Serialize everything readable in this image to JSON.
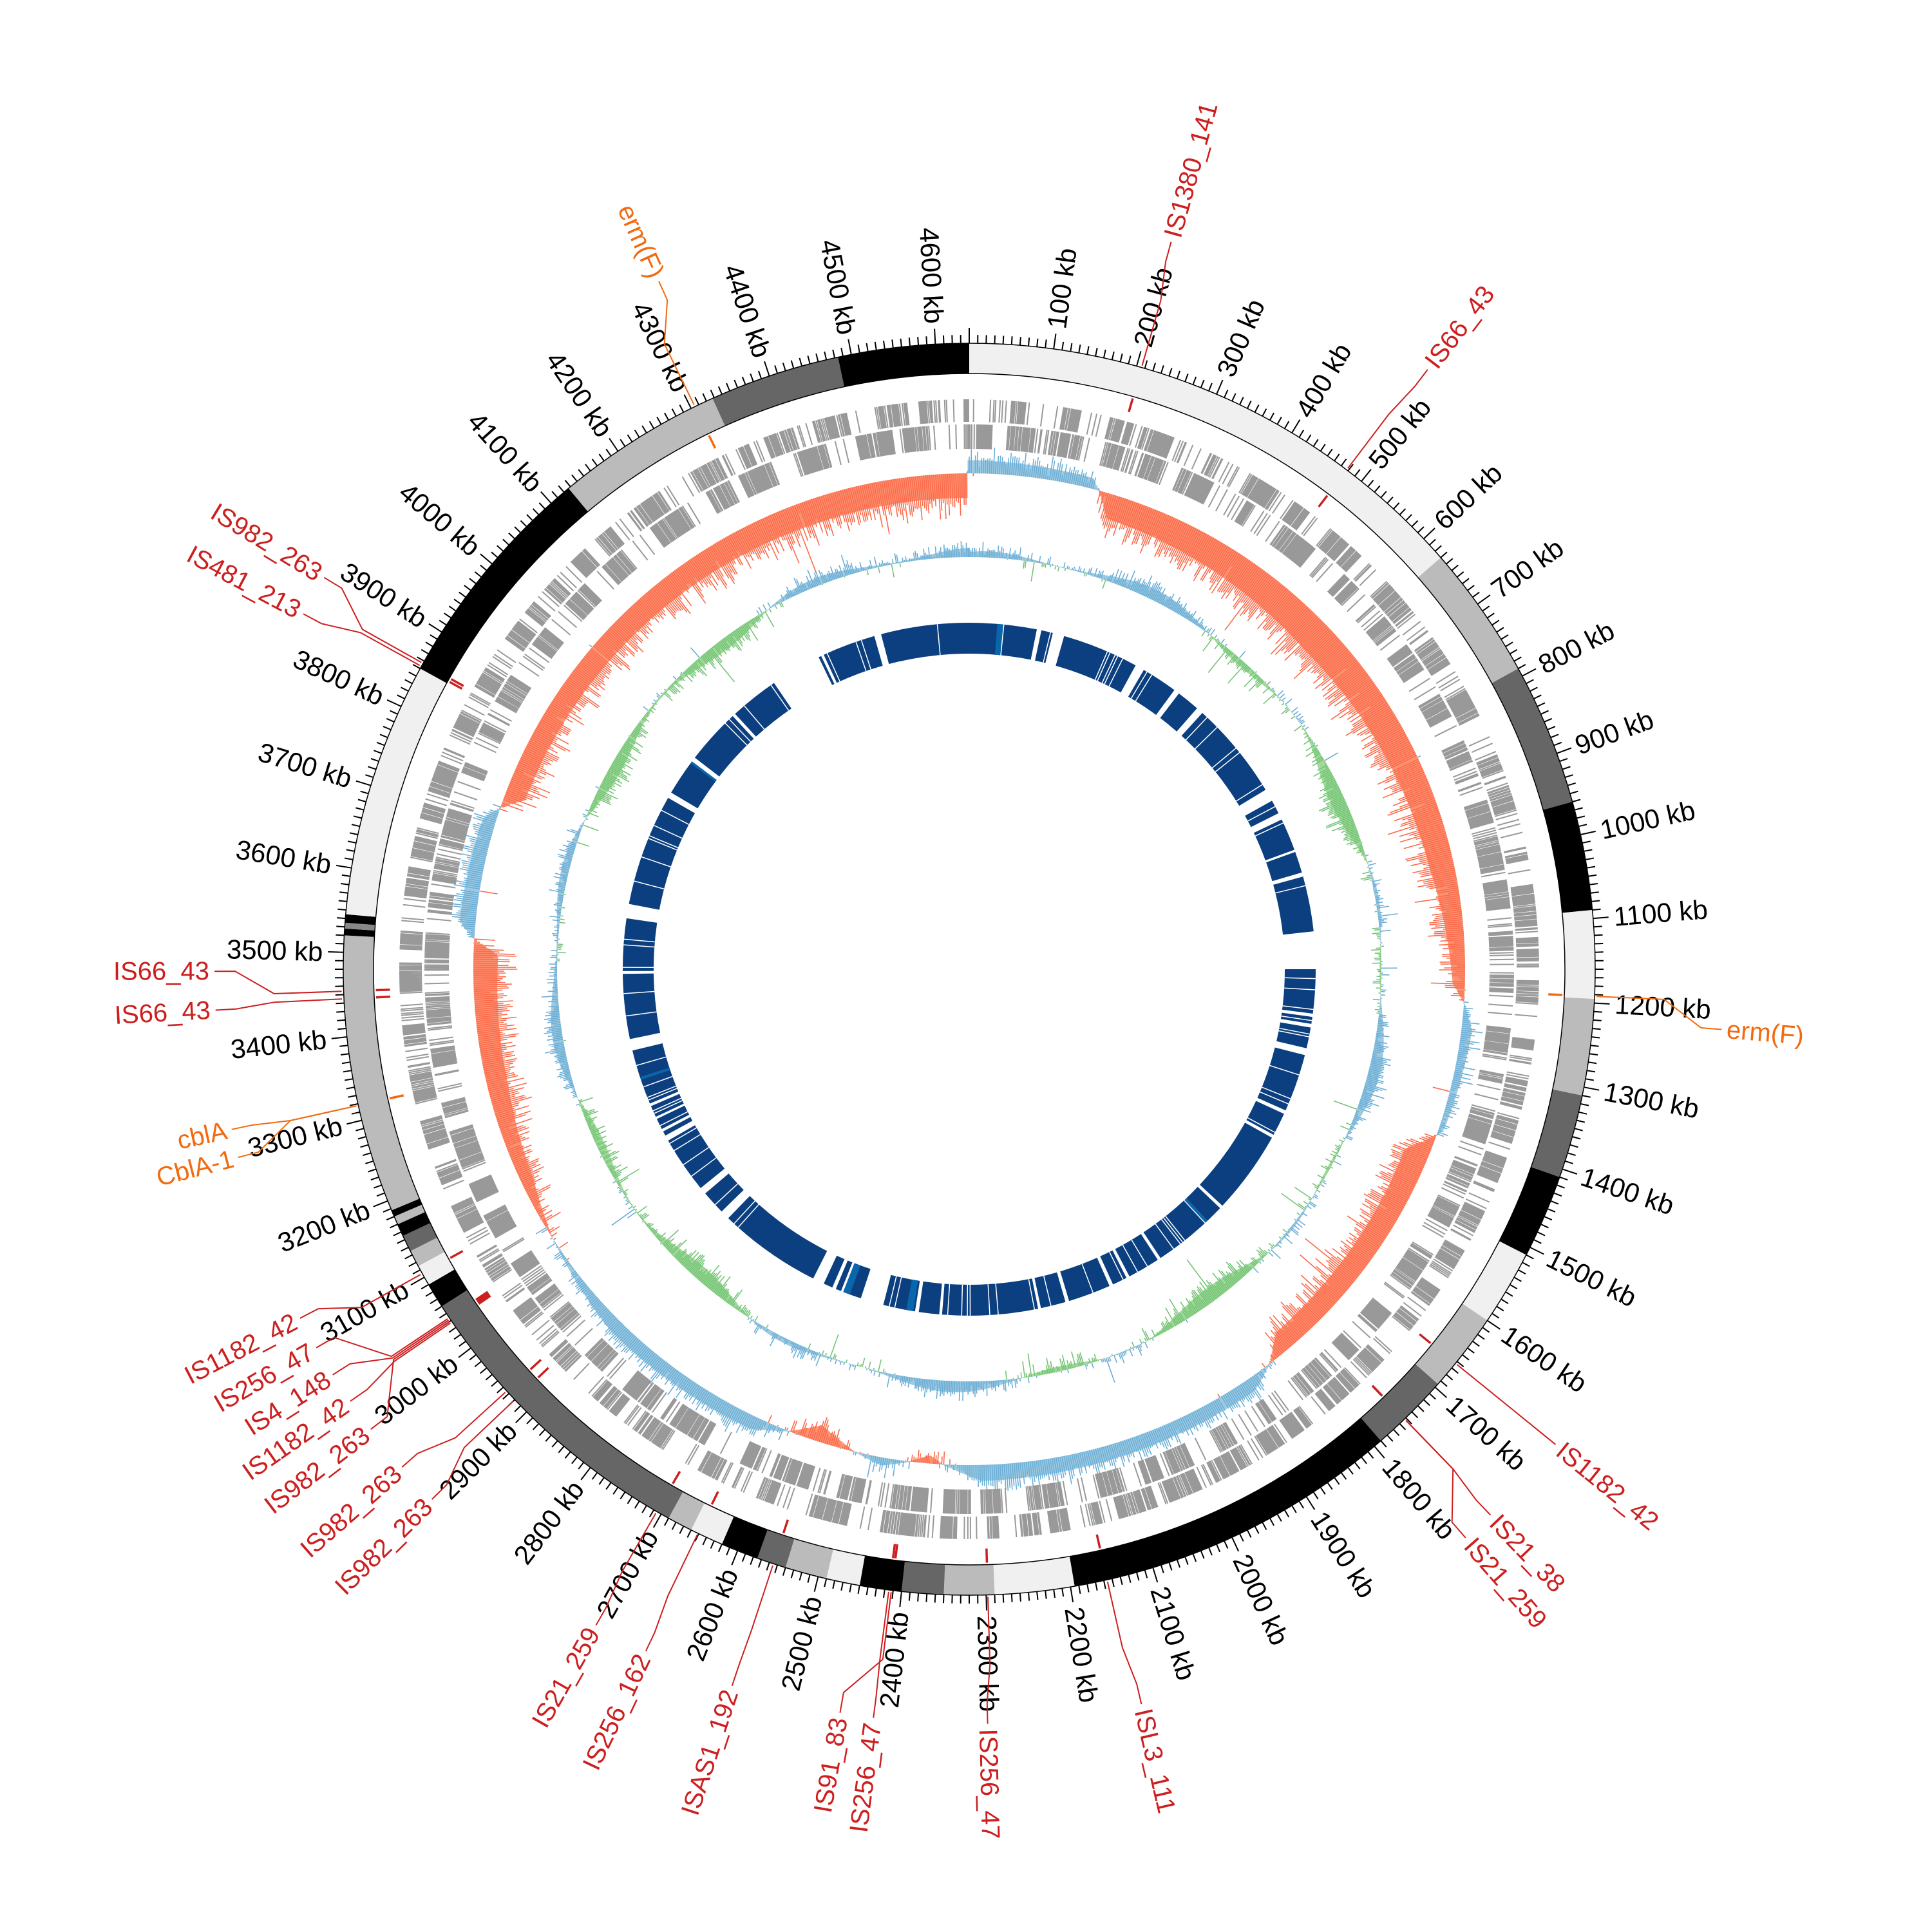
{
  "genome": {
    "total_kb": 4640,
    "ticks": [
      {
        "kb": 100,
        "label": "100 kb"
      },
      {
        "kb": 200,
        "label": "200 kb"
      },
      {
        "kb": 300,
        "label": "300 kb"
      },
      {
        "kb": 400,
        "label": "400 kb"
      },
      {
        "kb": 500,
        "label": "500 kb"
      },
      {
        "kb": 600,
        "label": "600 kb"
      },
      {
        "kb": 700,
        "label": "700 kb"
      },
      {
        "kb": 800,
        "label": "800 kb"
      },
      {
        "kb": 900,
        "label": "900 kb"
      },
      {
        "kb": 1000,
        "label": "1000 kb"
      },
      {
        "kb": 1100,
        "label": "1100 kb"
      },
      {
        "kb": 1200,
        "label": "1200 kb"
      },
      {
        "kb": 1300,
        "label": "1300 kb"
      },
      {
        "kb": 1400,
        "label": "1400 kb"
      },
      {
        "kb": 1500,
        "label": "1500 kb"
      },
      {
        "kb": 1600,
        "label": "1600 kb"
      },
      {
        "kb": 1700,
        "label": "1700 kb"
      },
      {
        "kb": 1800,
        "label": "1800 kb"
      },
      {
        "kb": 1900,
        "label": "1900 kb"
      },
      {
        "kb": 2000,
        "label": "2000 kb"
      },
      {
        "kb": 2100,
        "label": "2100 kb"
      },
      {
        "kb": 2200,
        "label": "2200 kb"
      },
      {
        "kb": 2300,
        "label": "2300 kb"
      },
      {
        "kb": 2400,
        "label": "2400 kb"
      },
      {
        "kb": 2500,
        "label": "2500 kb"
      },
      {
        "kb": 2600,
        "label": "2600 kb"
      },
      {
        "kb": 2700,
        "label": "2700 kb"
      },
      {
        "kb": 2800,
        "label": "2800 kb"
      },
      {
        "kb": 2900,
        "label": "2900 kb"
      },
      {
        "kb": 3000,
        "label": "3000 kb"
      },
      {
        "kb": 3100,
        "label": "3100 kb"
      },
      {
        "kb": 3200,
        "label": "3200 kb"
      },
      {
        "kb": 3300,
        "label": "3300 kb"
      },
      {
        "kb": 3400,
        "label": "3400 kb"
      },
      {
        "kb": 3500,
        "label": "3500 kb"
      },
      {
        "kb": 3600,
        "label": "3600 kb"
      },
      {
        "kb": 3700,
        "label": "3700 kb"
      },
      {
        "kb": 3800,
        "label": "3800 kb"
      },
      {
        "kb": 3900,
        "label": "3900 kb"
      },
      {
        "kb": 4000,
        "label": "4000 kb"
      },
      {
        "kb": 4100,
        "label": "4100 kb"
      },
      {
        "kb": 4200,
        "label": "4200 kb"
      },
      {
        "kb": 4300,
        "label": "4300 kb"
      },
      {
        "kb": 4400,
        "label": "4400 kb"
      },
      {
        "kb": 4500,
        "label": "4500 kb"
      },
      {
        "kb": 4600,
        "label": "4600 kb"
      }
    ],
    "bands": [
      [
        0,
        630,
        "#f0f0f0"
      ],
      [
        630,
        790,
        "#bbbbbb"
      ],
      [
        790,
        960,
        "#666666"
      ],
      [
        960,
        1090,
        "#000000"
      ],
      [
        1090,
        1195,
        "#f0f0f0"
      ],
      [
        1195,
        1310,
        "#bbbbbb"
      ],
      [
        1310,
        1410,
        "#666666"
      ],
      [
        1410,
        1510,
        "#000000"
      ],
      [
        1510,
        1600,
        "#f0f0f0"
      ],
      [
        1600,
        1695,
        "#bbbbbb"
      ],
      [
        1695,
        1790,
        "#666666"
      ],
      [
        1790,
        2195,
        "#000000"
      ],
      [
        2195,
        2290,
        "#f0f0f0"
      ],
      [
        2290,
        2350,
        "#bbbbbb"
      ],
      [
        2350,
        2400,
        "#666666"
      ],
      [
        2400,
        2450,
        "#000000"
      ],
      [
        2450,
        2490,
        "#f0f0f0"
      ],
      [
        2490,
        2540,
        "#bbbbbb"
      ],
      [
        2540,
        2575,
        "#666666"
      ],
      [
        2575,
        2620,
        "#000000"
      ],
      [
        2620,
        2660,
        "#f0f0f0"
      ],
      [
        2660,
        2690,
        "#bbbbbb"
      ],
      [
        2690,
        3060,
        "#666666"
      ],
      [
        3060,
        3090,
        "#000000"
      ],
      [
        3090,
        3115,
        "#f0f0f0"
      ],
      [
        3115,
        3135,
        "#bbbbbb"
      ],
      [
        3135,
        3155,
        "#666666"
      ],
      [
        3155,
        3170,
        "#000000"
      ],
      [
        3170,
        3180,
        "#bbbbbb"
      ],
      [
        3180,
        3188,
        "#000000"
      ],
      [
        3188,
        3520,
        "#bbbbbb"
      ],
      [
        3520,
        3528,
        "#000000"
      ],
      [
        3528,
        3535,
        "#888888"
      ],
      [
        3535,
        3545,
        "#000000"
      ],
      [
        3545,
        3850,
        "#f0f0f0"
      ],
      [
        3850,
        4127,
        "#000000"
      ],
      [
        4127,
        4328,
        "#bbbbbb"
      ],
      [
        4328,
        4484,
        "#666666"
      ],
      [
        4484,
        4640,
        "#000000"
      ]
    ]
  },
  "features": [
    {
      "label": "IS1380_141",
      "kb": 206,
      "type": "IS"
    },
    {
      "label": "IS66_43",
      "kb": 478,
      "type": "IS"
    },
    {
      "label": "erm(F)",
      "kb": 4305,
      "type": "resistance"
    },
    {
      "label": "erm(F)",
      "kb": 1192,
      "type": "resistance"
    },
    {
      "label": "IS1182_42",
      "kb": 1663,
      "type": "IS"
    },
    {
      "label": "IS21_38",
      "kb": 1752,
      "type": "IS"
    },
    {
      "label": "IS21_259",
      "kb": 1752,
      "type": "IS"
    },
    {
      "label": "ISL3_111",
      "kb": 2156,
      "type": "IS"
    },
    {
      "label": "IS256_47",
      "kb": 2298,
      "type": "IS"
    },
    {
      "label": "IS256_47",
      "kb": 2415,
      "type": "IS"
    },
    {
      "label": "IS91_83",
      "kb": 2412,
      "type": "IS"
    },
    {
      "label": "ISAS1_192",
      "kb": 2555,
      "type": "IS"
    },
    {
      "label": "IS256_162",
      "kb": 2651,
      "type": "IS"
    },
    {
      "label": "IS21_259",
      "kb": 2706,
      "type": "IS"
    },
    {
      "label": "IS982_263",
      "kb": 2920,
      "type": "IS"
    },
    {
      "label": "IS982_263",
      "kb": 2934,
      "type": "IS"
    },
    {
      "label": "IS982_263",
      "kb": 3040,
      "type": "IS"
    },
    {
      "label": "IS1182_42",
      "kb": 3038,
      "type": "IS"
    },
    {
      "label": "IS4_148",
      "kb": 3042,
      "type": "IS"
    },
    {
      "label": "IS256_47",
      "kb": 3044,
      "type": "IS"
    },
    {
      "label": "IS1182_42",
      "kb": 3105,
      "type": "IS"
    },
    {
      "label": "cblA",
      "kb": 3318,
      "type": "resistance"
    },
    {
      "label": "CblA-1",
      "kb": 3318,
      "type": "resistance"
    },
    {
      "label": "IS66_43",
      "kb": 3445,
      "type": "IS"
    },
    {
      "label": "IS66_43",
      "kb": 3454,
      "type": "IS"
    },
    {
      "label": "IS481_213",
      "kb": 3853,
      "type": "IS"
    },
    {
      "label": "IS982_263",
      "kb": 3857,
      "type": "IS"
    }
  ],
  "gc_content_trend": [
    [
      0,
      0.5
    ],
    [
      180,
      0.4
    ],
    [
      220,
      -0.6
    ],
    [
      600,
      -0.8
    ],
    [
      1000,
      -0.6
    ],
    [
      1180,
      -0.3
    ],
    [
      1250,
      0.4
    ],
    [
      1400,
      0.2
    ],
    [
      1450,
      -0.6
    ],
    [
      1800,
      -0.5
    ],
    [
      1880,
      0.5
    ],
    [
      2300,
      0.6
    ],
    [
      2380,
      -0.2
    ],
    [
      2450,
      0.3
    ],
    [
      2550,
      -0.4
    ],
    [
      2650,
      0.5
    ],
    [
      2900,
      0.5
    ],
    [
      3150,
      -0.3
    ],
    [
      3300,
      -0.5
    ],
    [
      3500,
      -0.6
    ],
    [
      3550,
      0.6
    ],
    [
      3700,
      0.5
    ],
    [
      3750,
      -0.5
    ],
    [
      4400,
      -0.6
    ],
    [
      4635,
      -0.6
    ],
    [
      4640,
      0.5
    ]
  ],
  "homology_blocks": [
    [
      4320,
      4435
    ],
    [
      4450,
      4640
    ],
    [
      0,
      145
    ],
    [
      155,
      180
    ],
    [
      205,
      370
    ],
    [
      390,
      468
    ],
    [
      480,
      530
    ],
    [
      545,
      758
    ],
    [
      785,
      815
    ],
    [
      830,
      900
    ],
    [
      905,
      951
    ],
    [
      960,
      1079
    ],
    [
      1160,
      1255
    ],
    [
      1262,
      1277
    ],
    [
      1285,
      1330
    ],
    [
      1345,
      1470
    ],
    [
      1478,
      1528
    ],
    [
      1535,
      1715
    ],
    [
      1722,
      1760
    ],
    [
      1768,
      1888
    ],
    [
      1895,
      1965
    ],
    [
      1972,
      2004
    ],
    [
      2012,
      2104
    ],
    [
      2112,
      2166
    ],
    [
      2172,
      2378
    ],
    [
      2384,
      2428
    ],
    [
      2436,
      2505
    ],
    [
      2555,
      2593
    ],
    [
      2600,
      2612
    ],
    [
      2620,
      2640
    ],
    [
      2665,
      2888
    ],
    [
      2908,
      2960
    ],
    [
      2975,
      3098
    ],
    [
      3110,
      3120
    ],
    [
      3126,
      3150
    ],
    [
      3155,
      3180
    ],
    [
      3186,
      3305
    ],
    [
      3330,
      3470
    ],
    [
      3476,
      3589
    ],
    [
      3620,
      3862
    ],
    [
      3875,
      3955
    ],
    [
      3965,
      4085
    ],
    [
      4092,
      4198
    ],
    [
      4308,
      4314
    ]
  ],
  "homology_highlights": [
    [
      60,
      75
    ],
    [
      1760,
      1766
    ],
    [
      2440,
      2455
    ],
    [
      2580,
      2595
    ],
    [
      3240,
      3246
    ],
    [
      3950,
      3955
    ]
  ],
  "colors": {
    "is_element": "#cc1f1f",
    "resistance": "#f26a10",
    "gene": "#999999",
    "gc_high": "#6baed6",
    "gc_high_fill": "#9ecae1",
    "gc_low": "#fb6a4a",
    "gc_low_fill": "#fc9272",
    "skew_pos": "#6baed6",
    "skew_neg": "#74c476",
    "skew_neg_fill": "#a1d99b",
    "block": "#0b3f7f",
    "block_highlight": "#0a66aa"
  }
}
